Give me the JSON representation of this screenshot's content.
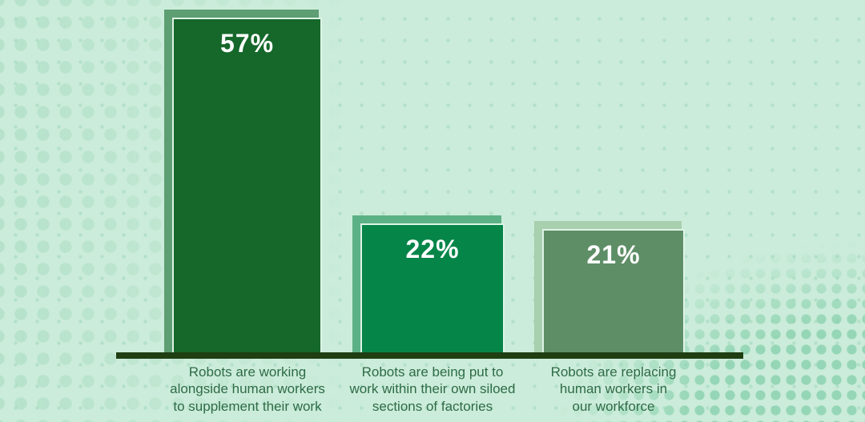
{
  "chart_data": {
    "type": "bar",
    "categories": [
      "Robots are working alongside human workers to supplement their work",
      "Robots are being put to work within their own siloed sections of factories",
      "Robots are replacing human workers in our workforce"
    ],
    "values": [
      57,
      22,
      21
    ],
    "value_labels": [
      "57%",
      "22%",
      "21%"
    ],
    "title": "",
    "xlabel": "",
    "ylabel": "",
    "ylim": [
      0,
      60
    ],
    "grid": false,
    "legend": false,
    "bar_colors": [
      "#15682a",
      "#068549",
      "#5e8e66"
    ],
    "bar_shadow_colors": [
      "#5d9e72",
      "#5cb184",
      "#a8cfae"
    ],
    "annotation_style": "white percentage labels inside bars, category labels below axis"
  },
  "bars": [
    {
      "pct": "57%",
      "label": "Robots are working\nalongside human workers\nto supplement their work"
    },
    {
      "pct": "22%",
      "label": "Robots are being put to\nwork within their own siloed\nsections of factories"
    },
    {
      "pct": "21%",
      "label": "Robots are replacing\nhuman workers in\nour workforce"
    }
  ],
  "colors": {
    "background": "#cbecda",
    "baseline": "#1f3e12",
    "label_text": "#2e6b46",
    "pct_text": "#ffffff",
    "bar1_fill": "#15682a",
    "bar1_shadow": "#5d9e72",
    "bar2_fill": "#068549",
    "bar2_shadow": "#5cb184",
    "bar3_fill": "#5e8e66",
    "bar3_shadow": "#a8cfae",
    "separator": "#dff3e7",
    "dots": "#a4dfc1"
  }
}
